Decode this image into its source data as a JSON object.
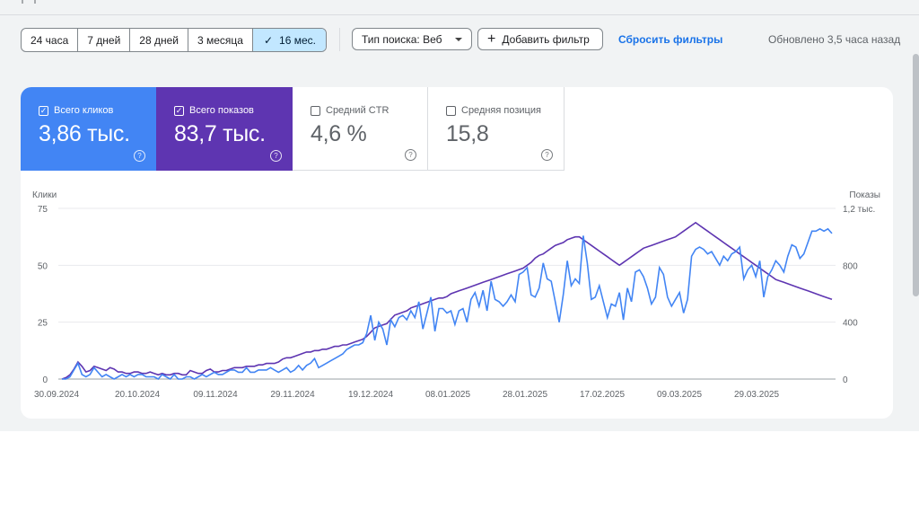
{
  "toolbar": {
    "ranges": [
      "24 часа",
      "7 дней",
      "28 дней",
      "3 месяца",
      "16 мес."
    ],
    "active_range": "16 мес.",
    "search_type": "Тип поиска: Веб",
    "add_filter": "Добавить фильтр",
    "reset_filters": "Сбросить фильтры",
    "updated": "Обновлено 3,5 часа назад"
  },
  "metrics": [
    {
      "label": "Всего кликов",
      "value": "3,86 тыс.",
      "checked": true,
      "color": "#4285f4"
    },
    {
      "label": "Всего показов",
      "value": "83,7 тыс.",
      "checked": true,
      "color": "#5e35b1"
    },
    {
      "label": "Средний CTR",
      "value": "4,6 %",
      "checked": false
    },
    {
      "label": "Средняя позиция",
      "value": "15,8",
      "checked": false
    }
  ],
  "chart_data": {
    "type": "line",
    "left_axis_title": "Клики",
    "right_axis_title": "Показы",
    "left_ticks": [
      "75",
      "50",
      "25",
      "0"
    ],
    "right_ticks": [
      "1,2 тыс.",
      "800",
      "400",
      "0"
    ],
    "x_ticks": [
      "30.09.2024",
      "20.10.2024",
      "09.11.2024",
      "29.11.2024",
      "19.12.2024",
      "08.01.2025",
      "28.01.2025",
      "17.02.2025",
      "09.03.2025",
      "29.03.2025"
    ],
    "left_ylim": [
      0,
      75
    ],
    "right_ylim": [
      0,
      1200
    ],
    "series": [
      {
        "name": "Клики",
        "color": "#4285f4",
        "axis": "left",
        "values": [
          0,
          0,
          1,
          4,
          7,
          2,
          1,
          2,
          5,
          3,
          1,
          2,
          1,
          0,
          1,
          2,
          1,
          2,
          1,
          2,
          2,
          1,
          1,
          1,
          0,
          2,
          1,
          0,
          2,
          0,
          0,
          1,
          1,
          0,
          1,
          2,
          1,
          2,
          3,
          2,
          2,
          3,
          4,
          4,
          3,
          3,
          5,
          3,
          3,
          4,
          4,
          4,
          5,
          4,
          3,
          4,
          5,
          3,
          4,
          6,
          4,
          6,
          7,
          9,
          5,
          6,
          7,
          8,
          9,
          10,
          11,
          13,
          14,
          15,
          15,
          16,
          20,
          28,
          17,
          25,
          22,
          15,
          26,
          23,
          27,
          28,
          26,
          30,
          27,
          34,
          22,
          29,
          36,
          21,
          31,
          31,
          29,
          30,
          24,
          30,
          31,
          25,
          35,
          38,
          32,
          39,
          30,
          43,
          35,
          34,
          32,
          34,
          37,
          34,
          46,
          47,
          49,
          37,
          36,
          40,
          51,
          44,
          43,
          34,
          25,
          37,
          52,
          41,
          44,
          42,
          63,
          51,
          35,
          36,
          41,
          34,
          27,
          33,
          32,
          38,
          26,
          40,
          34,
          47,
          48,
          45,
          40,
          33,
          36,
          49,
          46,
          36,
          32,
          35,
          38,
          29,
          35,
          54,
          57,
          58,
          57,
          55,
          56,
          53,
          50,
          54,
          52,
          55,
          56,
          58,
          44,
          48,
          50,
          45,
          52,
          36,
          45,
          48,
          52,
          50,
          47,
          54,
          59,
          58,
          53,
          55,
          60,
          65,
          65,
          66,
          65,
          66,
          64
        ]
      },
      {
        "name": "Показы",
        "color": "#5e35b1",
        "axis": "right",
        "values": [
          0,
          10,
          30,
          70,
          120,
          90,
          50,
          60,
          90,
          80,
          70,
          60,
          80,
          70,
          50,
          50,
          40,
          40,
          50,
          50,
          40,
          40,
          50,
          40,
          30,
          40,
          30,
          30,
          40,
          40,
          30,
          30,
          60,
          50,
          40,
          40,
          60,
          70,
          50,
          50,
          60,
          60,
          70,
          80,
          80,
          80,
          90,
          90,
          90,
          100,
          100,
          110,
          110,
          110,
          120,
          140,
          150,
          150,
          160,
          170,
          180,
          190,
          190,
          200,
          200,
          210,
          210,
          220,
          230,
          230,
          240,
          240,
          250,
          260,
          270,
          280,
          300,
          330,
          360,
          370,
          380,
          390,
          420,
          450,
          460,
          470,
          480,
          500,
          510,
          520,
          530,
          540,
          550,
          560,
          570,
          570,
          580,
          600,
          610,
          620,
          630,
          640,
          650,
          660,
          670,
          680,
          690,
          700,
          710,
          720,
          730,
          740,
          750,
          760,
          770,
          780,
          800,
          820,
          850,
          870,
          880,
          900,
          920,
          940,
          950,
          960,
          980,
          990,
          1000,
          1000,
          980,
          960,
          940,
          920,
          900,
          880,
          860,
          840,
          820,
          800,
          820,
          840,
          860,
          880,
          900,
          920,
          930,
          940,
          950,
          960,
          970,
          980,
          990,
          1000,
          1020,
          1040,
          1060,
          1080,
          1100,
          1080,
          1060,
          1040,
          1020,
          1000,
          980,
          960,
          940,
          920,
          900,
          880,
          860,
          840,
          820,
          800,
          780,
          760,
          740,
          720,
          700,
          690,
          680,
          670,
          660,
          650,
          640,
          630,
          620,
          610,
          600,
          590,
          580,
          570,
          560
        ]
      }
    ]
  }
}
